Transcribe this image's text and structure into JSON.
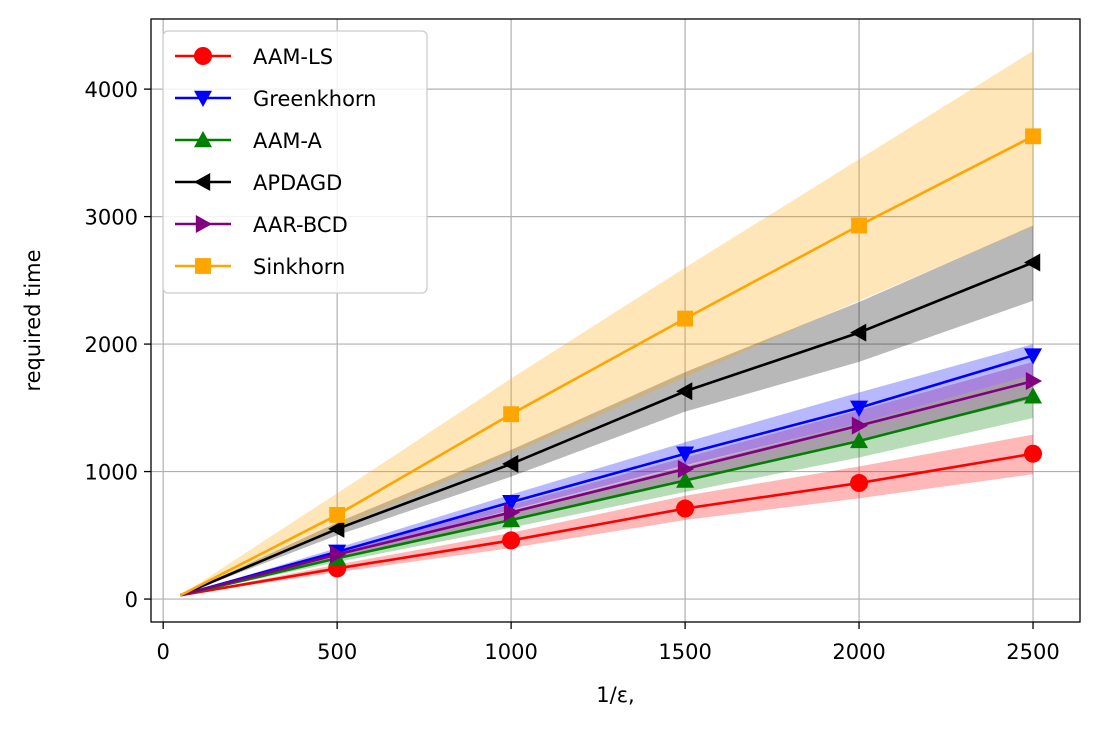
{
  "chart_data": {
    "type": "line",
    "title": "",
    "xlabel": "1/ε,",
    "ylabel": "required time",
    "xlim": [
      -35,
      2635
    ],
    "ylim": [
      -180,
      4550
    ],
    "x_ticks": [
      0,
      500,
      1000,
      1500,
      2000,
      2500
    ],
    "x_tick_labels": [
      "0",
      "500",
      "1000",
      "1500",
      "2000",
      "2500"
    ],
    "y_ticks": [
      0,
      1000,
      2000,
      3000,
      4000
    ],
    "y_tick_labels": [
      "0",
      "1000",
      "2000",
      "3000",
      "4000"
    ],
    "grid": true,
    "legend_position": "top-left",
    "x": [
      50,
      500,
      1000,
      1500,
      2000,
      2500
    ],
    "series": [
      {
        "name": "AAM-LS",
        "color": "#ff0000",
        "marker": "circle",
        "values": [
          30,
          240,
          460,
          710,
          910,
          1140
        ],
        "lower": [
          30,
          210,
          400,
          620,
          790,
          980
        ],
        "upper": [
          30,
          270,
          520,
          810,
          1040,
          1290
        ]
      },
      {
        "name": "Greenkhorn",
        "color": "#0000ff",
        "marker": "triangle-down",
        "values": [
          30,
          370,
          760,
          1140,
          1500,
          1910
        ],
        "lower": [
          30,
          340,
          700,
          1050,
          1380,
          1760
        ],
        "upper": [
          30,
          400,
          820,
          1230,
          1620,
          2000
        ]
      },
      {
        "name": "AAM-A",
        "color": "#008000",
        "marker": "triangle-up",
        "values": [
          30,
          320,
          620,
          930,
          1240,
          1590
        ],
        "lower": [
          30,
          290,
          560,
          840,
          1110,
          1420
        ],
        "upper": [
          30,
          350,
          690,
          1040,
          1380,
          1760
        ]
      },
      {
        "name": "APDAGD",
        "color": "#000000",
        "marker": "triangle-left",
        "values": [
          30,
          550,
          1060,
          1630,
          2090,
          2640
        ],
        "lower": [
          30,
          500,
          960,
          1470,
          1860,
          2340
        ],
        "upper": [
          30,
          600,
          1170,
          1780,
          2330,
          2930
        ]
      },
      {
        "name": "AAR-BCD",
        "color": "#800080",
        "marker": "triangle-right",
        "values": [
          30,
          350,
          680,
          1020,
          1360,
          1710
        ],
        "lower": [
          30,
          320,
          620,
          930,
          1240,
          1570
        ],
        "upper": [
          30,
          380,
          740,
          1110,
          1480,
          1860
        ]
      },
      {
        "name": "Sinkhorn",
        "color": "#ffa500",
        "marker": "square",
        "values": [
          30,
          660,
          1450,
          2200,
          2930,
          3630
        ],
        "lower": [
          30,
          560,
          1140,
          1740,
          2340,
          2920
        ],
        "upper": [
          30,
          830,
          1730,
          2600,
          3450,
          4300
        ]
      }
    ]
  }
}
